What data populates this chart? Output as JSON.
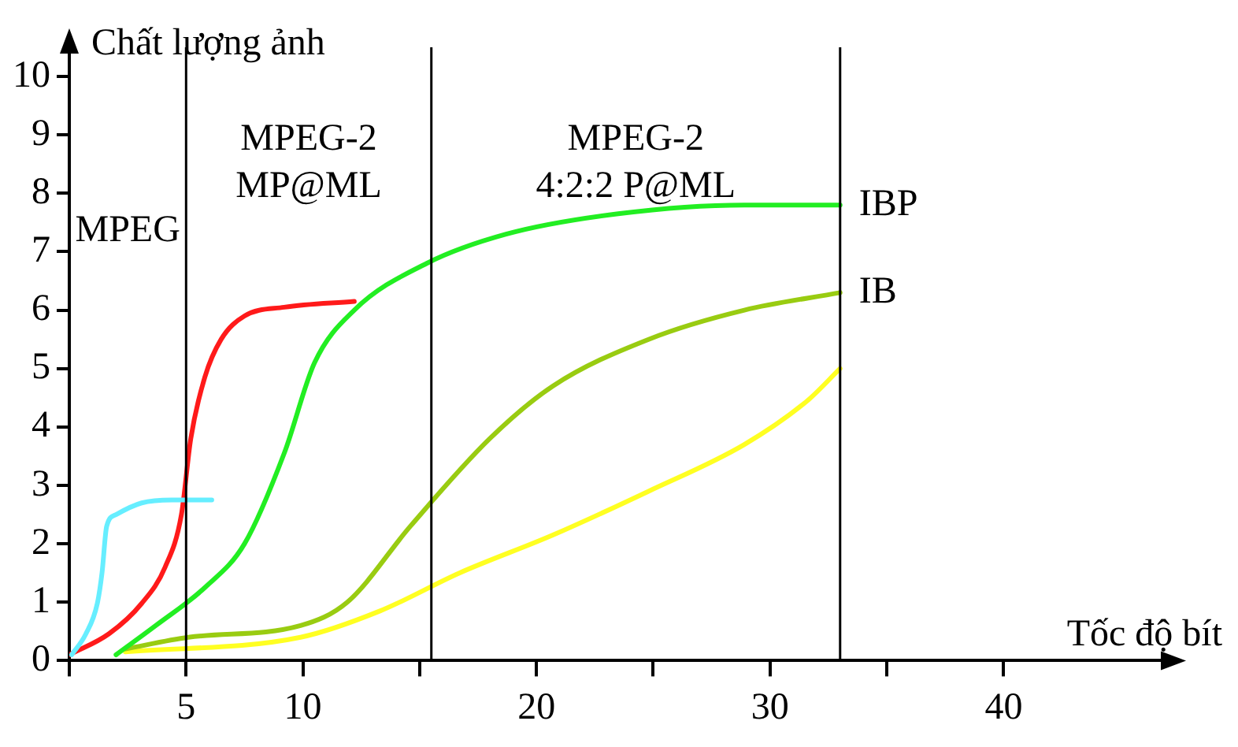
{
  "chart_data": {
    "type": "line",
    "xlabel": "Tốc độ bít",
    "ylabel": "Chất lượng ảnh",
    "xlim": [
      0,
      47
    ],
    "ylim": [
      0,
      10.5
    ],
    "xticks": [
      {
        "value": 0,
        "label": null
      },
      5,
      10,
      {
        "value": 15,
        "label": null
      },
      20,
      {
        "value": 25,
        "label": null
      },
      30,
      {
        "value": 35,
        "label": null
      },
      40
    ],
    "yticks": [
      0,
      1,
      2,
      3,
      4,
      5,
      6,
      7,
      8,
      9,
      10
    ],
    "grid": false,
    "legend": false,
    "marker": "none",
    "line_style": "solid",
    "series": [
      {
        "color": "#66eeff",
        "x": [
          0.1,
          0.7,
          1.2,
          1.4,
          1.6,
          2.0,
          3.1,
          4.4,
          6.1
        ],
        "values": [
          0.1,
          0.45,
          0.98,
          1.5,
          2.3,
          2.5,
          2.7,
          2.75,
          2.75
        ]
      },
      {
        "color": "#ff1a1a",
        "x": [
          0,
          1.7,
          3.1,
          4.1,
          4.8,
          5.2,
          5.8,
          6.5,
          7.5,
          9.2,
          12.2
        ],
        "values": [
          0.1,
          0.46,
          0.98,
          1.6,
          2.5,
          3.8,
          4.85,
          5.5,
          5.9,
          6.05,
          6.15
        ]
      },
      {
        "name": "IBP",
        "color": "#22ee22",
        "x": [
          2.0,
          3.7,
          5.8,
          7.5,
          9.2,
          10.5,
          12.2,
          15.3,
          18.7,
          23.5,
          28.9,
          33
        ],
        "values": [
          0.1,
          0.6,
          1.25,
          2.0,
          3.55,
          5.1,
          6.0,
          6.8,
          7.3,
          7.65,
          7.8,
          7.8
        ]
      },
      {
        "name": "IB",
        "color": "#99cc11",
        "x": [
          2.4,
          5.1,
          9.9,
          11.9,
          14.6,
          18,
          20.7,
          24.8,
          28.9,
          33
        ],
        "values": [
          0.2,
          0.4,
          0.6,
          1.0,
          2.3,
          3.8,
          4.7,
          5.5,
          6.0,
          6.3
        ]
      },
      {
        "color": "#ffff22",
        "x": [
          2.4,
          9.9,
          13.3,
          16.7,
          20.7,
          24.8,
          28.9,
          31.6,
          33
        ],
        "values": [
          0.15,
          0.4,
          0.85,
          1.5,
          2.15,
          2.9,
          3.7,
          4.45,
          5.0
        ]
      }
    ],
    "ref_lines": [
      {
        "axis": "x",
        "value": 5,
        "color": "#000000"
      },
      {
        "axis": "x",
        "value": 15.5,
        "color": "#000000"
      },
      {
        "axis": "x",
        "value": 33,
        "color": "#000000"
      }
    ],
    "annotations": [
      "MPEG",
      "MPEG-2\nMP@ML",
      "MPEG-2\n4:2:2 P@ML"
    ]
  }
}
